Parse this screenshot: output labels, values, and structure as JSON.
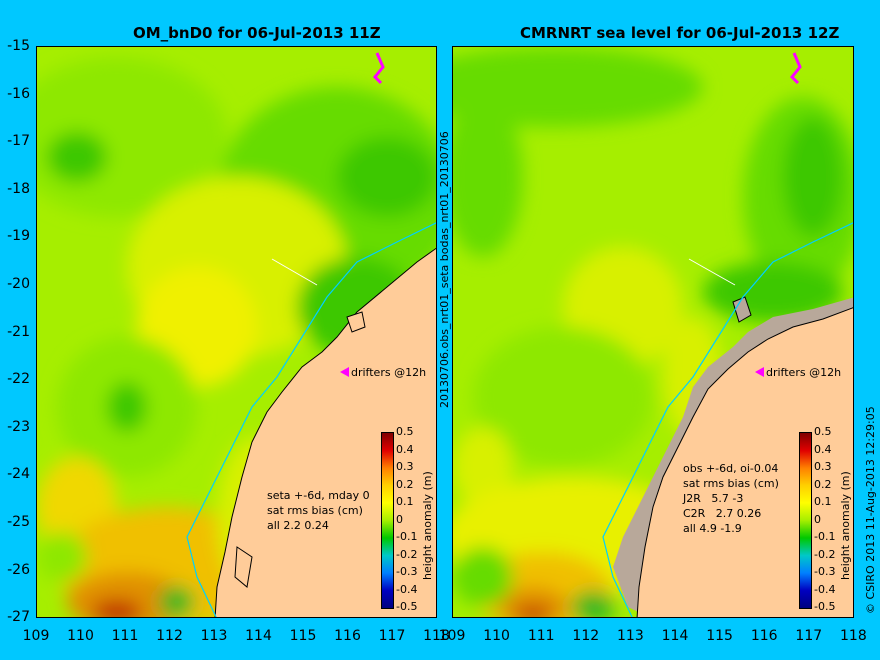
{
  "panels": [
    {
      "title": "OM_bnD0 for 06-Jul-2013 11Z",
      "drifters_label": "drifters @12h",
      "stats": [
        "seta +-6d, mday 0",
        "sat rms bias (cm)",
        "all 2.2 0.24"
      ]
    },
    {
      "title": "CMRNRT sea level  for 06-Jul-2013 12Z",
      "drifters_label": "drifters @12h",
      "stats": [
        "obs +-6d, oi-0.04",
        "sat rms bias (cm)",
        "J2R   5.7 -3",
        "C2R   2.7 0.26",
        "all 4.9 -1.9"
      ]
    }
  ],
  "y_ticks": [
    "-15",
    "-16",
    "-17",
    "-18",
    "-19",
    "-20",
    "-21",
    "-22",
    "-23",
    "-24",
    "-25",
    "-26",
    "-27"
  ],
  "x_ticks_left": [
    "109",
    "110",
    "111",
    "112",
    "113",
    "114",
    "115",
    "116",
    "117",
    "118"
  ],
  "x_ticks_right": [
    "109",
    "110",
    "111",
    "112",
    "113",
    "114",
    "115",
    "116",
    "117",
    "118"
  ],
  "colorbar": {
    "label": "height anomaly (m)",
    "ticks": [
      "0.5",
      "0.4",
      "0.3",
      "0.2",
      "0.1",
      "0",
      "-0.1",
      "-0.2",
      "-0.3",
      "-0.4",
      "-0.5"
    ],
    "range": [
      -0.5,
      0.5
    ]
  },
  "side_text": {
    "middle": "20130706.obs_nrt01_seta     bodas_nrt01_20130706",
    "right": "© CSIRO 2013   11-Aug-2013 12:29:05"
  },
  "colors": {
    "background": "#00c8ff",
    "land": "#ffcc99",
    "coastline": "#000000",
    "isobath": "#00d0ff",
    "drifter_arrow": "#ff00ff"
  }
}
